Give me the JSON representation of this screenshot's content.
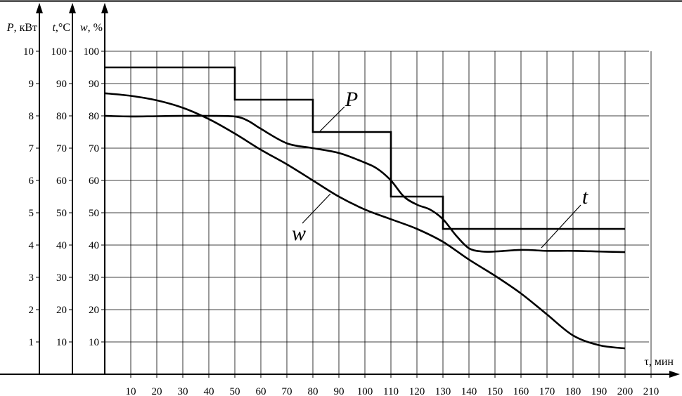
{
  "chart_data": {
    "type": "line",
    "xlabel": "τ, мин",
    "x_ticks": [
      10,
      20,
      30,
      40,
      50,
      60,
      70,
      80,
      90,
      100,
      110,
      120,
      130,
      140,
      150,
      160,
      170,
      180,
      190,
      200,
      210
    ],
    "xlim": [
      0,
      210
    ],
    "axes": [
      {
        "symbol": "P",
        "unit": ", кВт",
        "ticks": [
          1,
          2,
          3,
          4,
          5,
          6,
          7,
          8,
          9,
          10
        ],
        "ylim": [
          0,
          10
        ]
      },
      {
        "symbol": "t",
        "unit": ",°С",
        "ticks": [
          10,
          20,
          30,
          40,
          50,
          60,
          70,
          80,
          90,
          100
        ],
        "ylim": [
          0,
          100
        ]
      },
      {
        "symbol": "w",
        "unit": ", %",
        "ticks": [
          10,
          20,
          30,
          40,
          50,
          60,
          70,
          80,
          90,
          100
        ],
        "ylim": [
          0,
          100
        ]
      }
    ],
    "grid": true,
    "series": [
      {
        "name": "P",
        "axis": "P",
        "step": true,
        "points": [
          [
            0,
            9.5
          ],
          [
            50,
            9.5
          ],
          [
            50,
            8.5
          ],
          [
            80,
            8.5
          ],
          [
            80,
            7.5
          ],
          [
            110,
            7.5
          ],
          [
            110,
            5.5
          ],
          [
            130,
            5.5
          ],
          [
            130,
            4.5
          ],
          [
            200,
            4.5
          ]
        ]
      },
      {
        "name": "t",
        "axis": "t",
        "points": [
          [
            0,
            80
          ],
          [
            10,
            79.8
          ],
          [
            20,
            79.9
          ],
          [
            30,
            80
          ],
          [
            40,
            80
          ],
          [
            50,
            79.8
          ],
          [
            55,
            78.5
          ],
          [
            60,
            76
          ],
          [
            70,
            71.5
          ],
          [
            80,
            70
          ],
          [
            90,
            68.5
          ],
          [
            100,
            65.5
          ],
          [
            105,
            63.5
          ],
          [
            110,
            60
          ],
          [
            115,
            55
          ],
          [
            120,
            52.5
          ],
          [
            125,
            51
          ],
          [
            130,
            48
          ],
          [
            135,
            43
          ],
          [
            140,
            39
          ],
          [
            145,
            38
          ],
          [
            150,
            38
          ],
          [
            160,
            38.5
          ],
          [
            170,
            38.2
          ],
          [
            180,
            38.2
          ],
          [
            190,
            38
          ],
          [
            200,
            37.8
          ]
        ]
      },
      {
        "name": "w",
        "axis": "w",
        "points": [
          [
            0,
            87
          ],
          [
            10,
            86.2
          ],
          [
            20,
            84.8
          ],
          [
            30,
            82.5
          ],
          [
            40,
            79
          ],
          [
            50,
            74.5
          ],
          [
            60,
            69.5
          ],
          [
            70,
            65
          ],
          [
            80,
            60
          ],
          [
            90,
            55
          ],
          [
            100,
            51
          ],
          [
            110,
            48
          ],
          [
            120,
            45
          ],
          [
            130,
            41
          ],
          [
            140,
            35.5
          ],
          [
            150,
            30.5
          ],
          [
            160,
            25
          ],
          [
            170,
            18.5
          ],
          [
            180,
            12
          ],
          [
            190,
            9
          ],
          [
            200,
            8
          ]
        ]
      }
    ],
    "annotations": [
      {
        "text": "P",
        "target_series": "P"
      },
      {
        "text": "t",
        "target_series": "t"
      },
      {
        "text": "w",
        "target_series": "w"
      }
    ]
  }
}
